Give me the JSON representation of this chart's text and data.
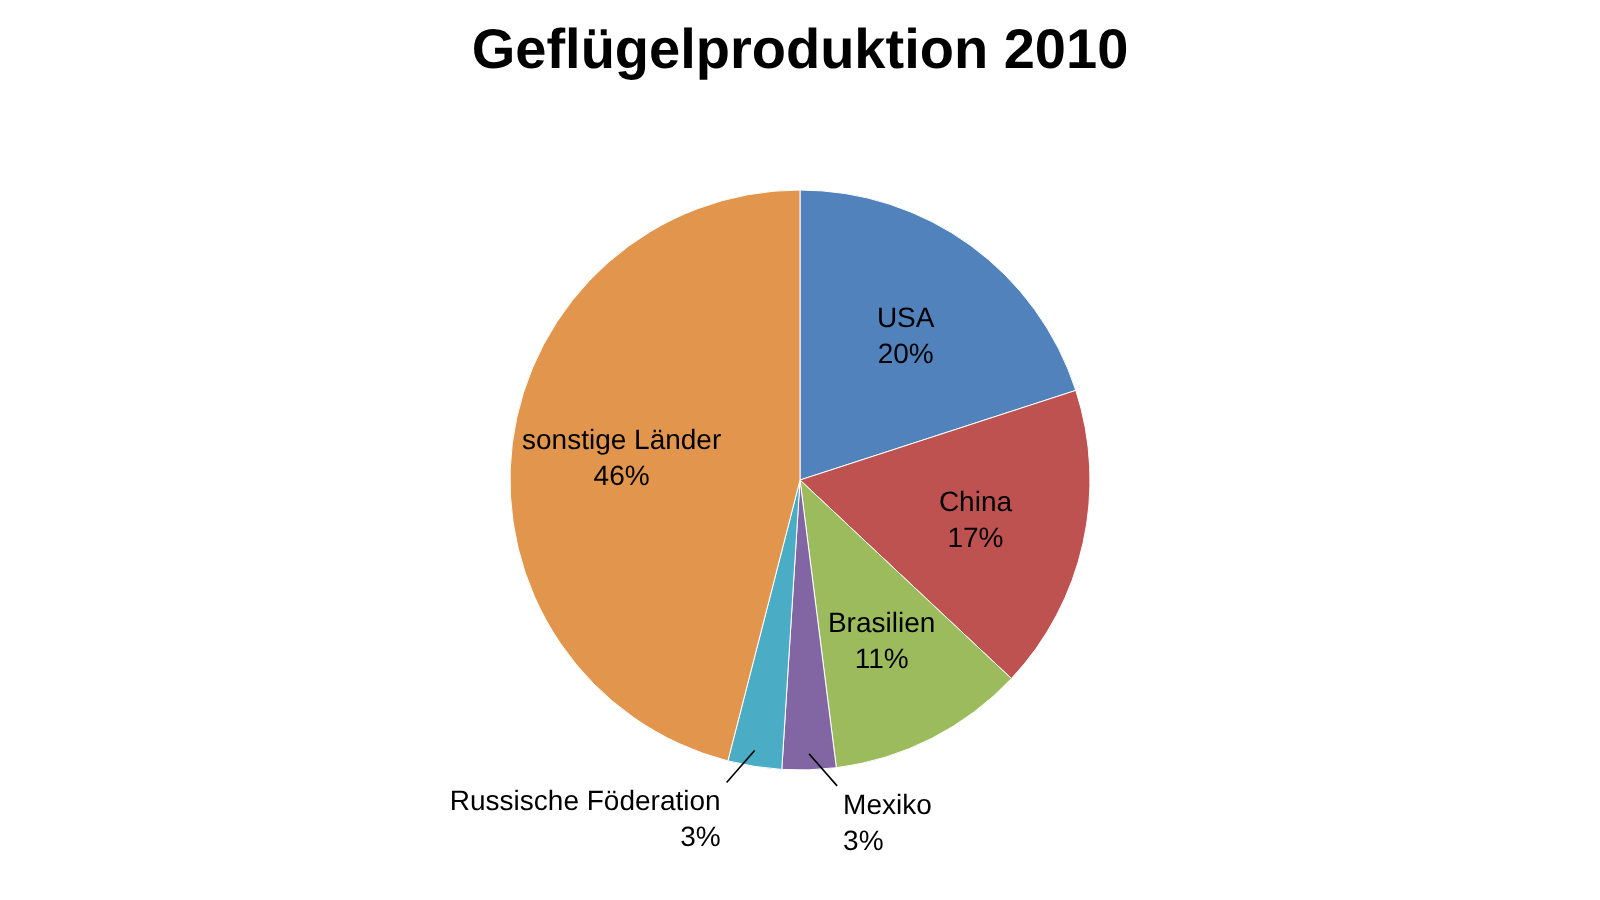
{
  "chart_data": {
    "type": "pie",
    "title": "Geflügelproduktion 2010",
    "categories": [
      "USA",
      "China",
      "Brasilien",
      "Mexiko",
      "Russische Föderation",
      "sonstige Länder"
    ],
    "values": [
      20,
      17,
      11,
      3,
      3,
      46
    ],
    "value_labels": [
      "20%",
      "17%",
      "11%",
      "3%",
      "3%",
      "46%"
    ],
    "colors": [
      "#5182bb",
      "#be5250",
      "#9cbb5d",
      "#8166a3",
      "#4bacc6",
      "#e2964d"
    ],
    "legend": false
  }
}
